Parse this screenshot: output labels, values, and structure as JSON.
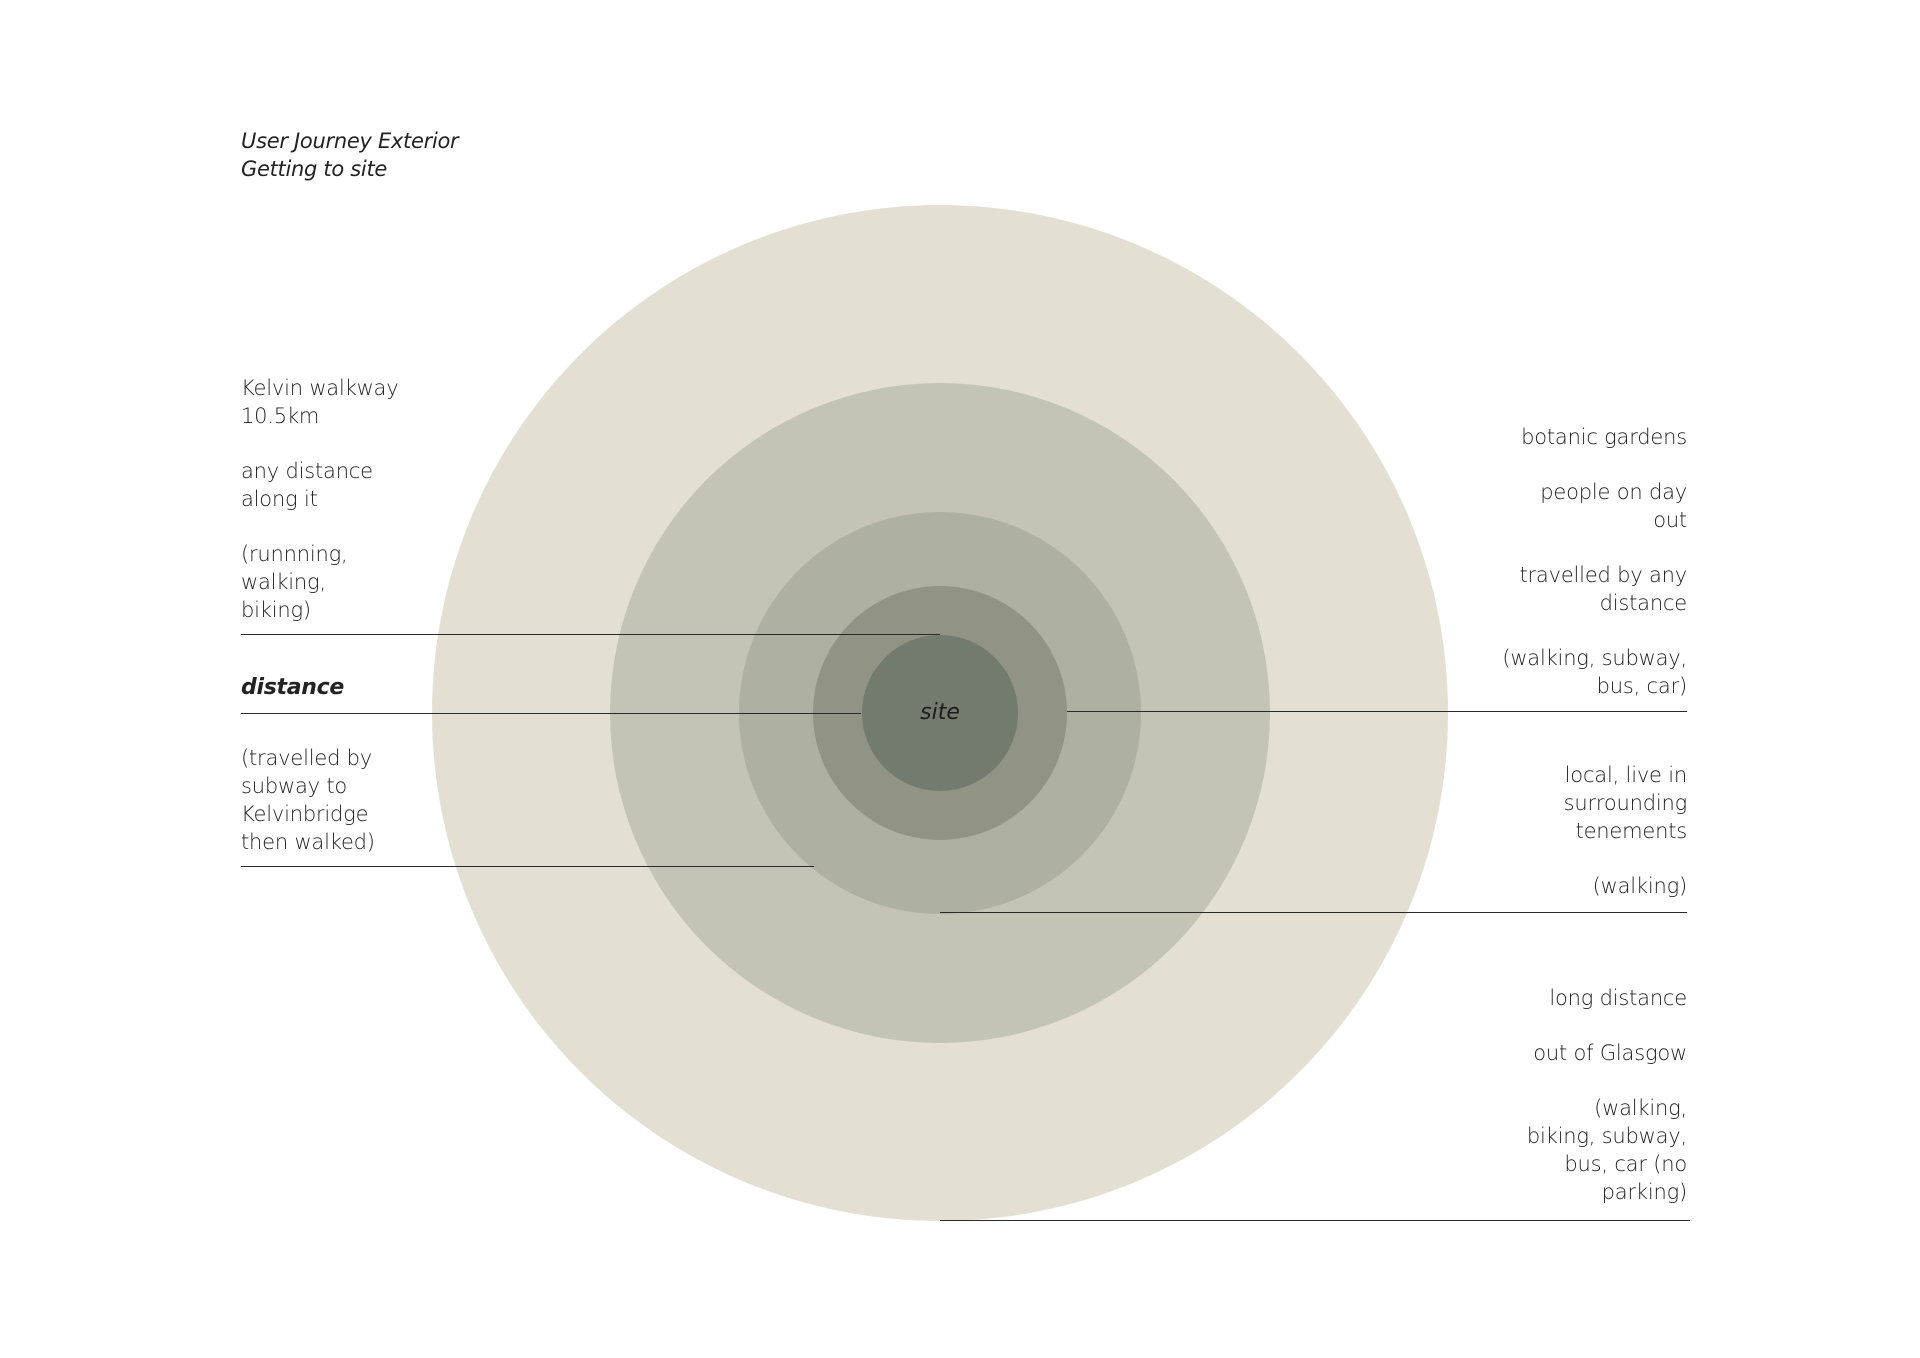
{
  "title": {
    "line1": "User Journey Exterior",
    "line2": "Getting to site"
  },
  "center_label": "site",
  "axis_label": "distance",
  "colors": {
    "ring_outer": "#e3e0d3",
    "ring_2": "#c3c4b5",
    "ring_3": "#aeb0a1",
    "ring_4": "#919484",
    "ring_core": "#737b6e",
    "leader_line": "#2a2a2a",
    "text": "#222222"
  },
  "annotations": {
    "kelvin_walkway": [
      "Kelvin walkway\n10.5km",
      "any distance\nalong it",
      "(runnning,\nwalking,\nbiking)"
    ],
    "subway_kelvinbridge": [
      "(travelled by\nsubway to\nKelvinbridge\nthen walked)"
    ],
    "botanic_gardens": [
      "botanic gardens",
      "people on day\nout",
      "travelled by any\ndistance",
      "(walking, subway,\nbus, car)"
    ],
    "local": [
      "local, live in\nsurrounding\ntenements",
      "(walking)"
    ],
    "long_distance": [
      "long distance",
      "out of Glasgow",
      "(walking,\nbiking, subway,\nbus, car (no\nparking)"
    ]
  }
}
